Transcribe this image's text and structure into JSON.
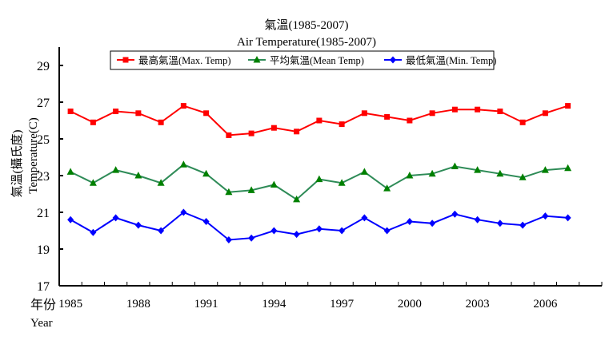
{
  "chart_data": {
    "type": "line",
    "title": "氣溫(1985-2007)",
    "subtitle": "Air Temperature(1985-2007)",
    "ylabel_zh": "氣溫(攝氏度)",
    "ylabel_en": "Temperature(C)",
    "xlabel_zh": "年份",
    "xlabel_en": "Year",
    "ylim": [
      17,
      30
    ],
    "yticks": [
      17,
      19,
      21,
      23,
      25,
      27,
      29
    ],
    "xlim": [
      1984.5,
      2008.5
    ],
    "xticks": [
      1985,
      1988,
      1991,
      1994,
      1997,
      2000,
      2003,
      2006
    ],
    "grid": false,
    "legend_position": "top",
    "x": [
      1985,
      1986,
      1987,
      1988,
      1989,
      1990,
      1991,
      1992,
      1993,
      1994,
      1995,
      1996,
      1997,
      1998,
      1999,
      2000,
      2001,
      2002,
      2003,
      2004,
      2005,
      2006,
      2007
    ],
    "series": [
      {
        "name": "最高氣溫(Max. Temp)",
        "color": "#ff0000",
        "line_color": "#ff0000",
        "marker": "square",
        "values": [
          26.5,
          25.9,
          26.5,
          26.4,
          25.9,
          26.8,
          26.4,
          25.2,
          25.3,
          25.6,
          25.4,
          26.0,
          25.8,
          26.4,
          26.2,
          26.0,
          26.4,
          26.6,
          26.6,
          26.5,
          25.9,
          26.4,
          26.8
        ]
      },
      {
        "name": "平均氣溫(Mean Temp)",
        "color": "#008000",
        "line_color": "#2e8b57",
        "marker": "triangle",
        "values": [
          23.2,
          22.6,
          23.3,
          23.0,
          22.6,
          23.6,
          23.1,
          22.1,
          22.2,
          22.5,
          21.7,
          22.8,
          22.6,
          23.2,
          22.3,
          23.0,
          23.1,
          23.5,
          23.3,
          23.1,
          22.9,
          23.3,
          23.4
        ]
      },
      {
        "name": "最低氣溫(Min. Temp)",
        "color": "#0000ff",
        "line_color": "#0000ff",
        "marker": "diamond",
        "values": [
          20.6,
          19.9,
          20.7,
          20.3,
          20.0,
          21.0,
          20.5,
          19.5,
          19.6,
          20.0,
          19.8,
          20.1,
          20.0,
          20.7,
          20.0,
          20.5,
          20.4,
          20.9,
          20.6,
          20.4,
          20.3,
          20.8,
          20.7
        ]
      }
    ]
  }
}
